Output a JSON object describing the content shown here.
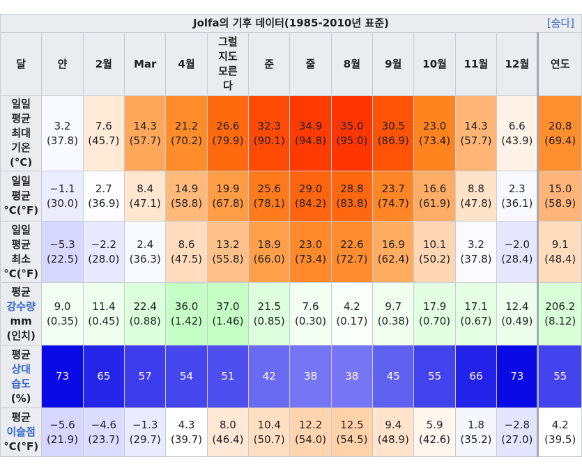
{
  "table": {
    "title": "Jolfa의 기후 데이터(1985-2010년 표준)",
    "hide_label": "[숨다]",
    "header_label": "달",
    "months": [
      "얀",
      "2월",
      "Mar",
      "4월",
      "그럴\n지도\n모른\n다",
      "준",
      "줄",
      "8월",
      "9월",
      "10월",
      "11월",
      "12월"
    ],
    "year_label": "연도",
    "rows": [
      {
        "label_lines": [
          {
            "text": "일일",
            "link": false
          },
          {
            "text": "평균",
            "link": false
          },
          {
            "text": "최대",
            "link": false
          },
          {
            "text": "기온",
            "link": false
          },
          {
            "text": "(°C)",
            "link": false
          }
        ],
        "height": 108,
        "cells": [
          {
            "v": "3.2",
            "s": "(37.8)",
            "bg": "#f8f9ff"
          },
          {
            "v": "7.6",
            "s": "(45.7)",
            "bg": "#ffead8"
          },
          {
            "v": "14.3",
            "s": "(57.7)",
            "bg": "#ffa75b"
          },
          {
            "v": "21.2",
            "s": "(70.2)",
            "bg": "#ff8c2a"
          },
          {
            "v": "26.6",
            "s": "(79.9)",
            "bg": "#ff6a0f"
          },
          {
            "v": "32.3",
            "s": "(90.1)",
            "bg": "#ff4a05"
          },
          {
            "v": "34.9",
            "s": "(94.8)",
            "bg": "#ff3a03"
          },
          {
            "v": "35.0",
            "s": "(95.0)",
            "bg": "#ff3603"
          },
          {
            "v": "30.5",
            "s": "(86.9)",
            "bg": "#ff5308"
          },
          {
            "v": "23.0",
            "s": "(73.4)",
            "bg": "#ff8420"
          },
          {
            "v": "14.3",
            "s": "(57.7)",
            "bg": "#ffb575"
          },
          {
            "v": "6.6",
            "s": "(43.9)",
            "bg": "#fff2e6"
          }
        ],
        "year": {
          "v": "20.8",
          "s": "(69.4)",
          "bg": "#ff8e2e"
        }
      },
      {
        "label_lines": [
          {
            "text": "일일",
            "link": false
          },
          {
            "text": "평균",
            "link": false
          },
          {
            "text": "°C(°F)",
            "link": false
          }
        ],
        "height": 72,
        "cells": [
          {
            "v": "−1.1",
            "s": "(30.0)",
            "bg": "#ececff"
          },
          {
            "v": "2.7",
            "s": "(36.9)",
            "bg": "#fdfdff"
          },
          {
            "v": "8.4",
            "s": "(47.1)",
            "bg": "#ffe6cf"
          },
          {
            "v": "14.9",
            "s": "(58.8)",
            "bg": "#ffb97b"
          },
          {
            "v": "19.9",
            "s": "(67.8)",
            "bg": "#ff9c46"
          },
          {
            "v": "25.6",
            "s": "(78.1)",
            "bg": "#ff7a1c"
          },
          {
            "v": "29.0",
            "s": "(84.2)",
            "bg": "#ff6510"
          },
          {
            "v": "28.8",
            "s": "(83.8)",
            "bg": "#ff6711"
          },
          {
            "v": "23.7",
            "s": "(74.7)",
            "bg": "#ff8526"
          },
          {
            "v": "16.6",
            "s": "(61.9)",
            "bg": "#ffad66"
          },
          {
            "v": "8.8",
            "s": "(47.8)",
            "bg": "#ffe3c9"
          },
          {
            "v": "2.3",
            "s": "(36.1)",
            "bg": "#f8f9ff"
          }
        ],
        "year": {
          "v": "15.0",
          "s": "(58.9)",
          "bg": "#ffb47a"
        }
      },
      {
        "label_lines": [
          {
            "text": "일일",
            "link": false
          },
          {
            "text": "평균",
            "link": false
          },
          {
            "text": "최소",
            "link": false
          },
          {
            "text": "°C(°F)",
            "link": false
          }
        ],
        "height": 88,
        "cells": [
          {
            "v": "−5.3",
            "s": "(22.5)",
            "bg": "#d8d8ff"
          },
          {
            "v": "−2.2",
            "s": "(28.0)",
            "bg": "#e8e8ff"
          },
          {
            "v": "2.4",
            "s": "(36.3)",
            "bg": "#f8f8ff"
          },
          {
            "v": "8.6",
            "s": "(47.5)",
            "bg": "#ffdcbe"
          },
          {
            "v": "13.2",
            "s": "(55.8)",
            "bg": "#ffc08a"
          },
          {
            "v": "18.9",
            "s": "(66.0)",
            "bg": "#ff9f4a"
          },
          {
            "v": "23.0",
            "s": "(73.4)",
            "bg": "#ff8a2b"
          },
          {
            "v": "22.6",
            "s": "(72.7)",
            "bg": "#ff8c2e"
          },
          {
            "v": "16.9",
            "s": "(62.4)",
            "bg": "#ffab60"
          },
          {
            "v": "10.1",
            "s": "(50.2)",
            "bg": "#ffd6b3"
          },
          {
            "v": "3.2",
            "s": "(37.8)",
            "bg": "#fafaff"
          },
          {
            "v": "−2.0",
            "s": "(28.4)",
            "bg": "#e6e6ff"
          }
        ],
        "year": {
          "v": "9.1",
          "s": "(48.4)",
          "bg": "#ffdcbd"
        }
      },
      {
        "label_lines": [
          {
            "text": "평균",
            "link": false
          },
          {
            "text": "강수량",
            "link": true
          },
          {
            "text": "mm",
            "link": false
          },
          {
            "text": "(인치)",
            "link": false
          }
        ],
        "height": 90,
        "cells": [
          {
            "v": "9.0",
            "s": "(0.35)",
            "bg": "#f2fff2"
          },
          {
            "v": "11.4",
            "s": "(0.45)",
            "bg": "#eeffee"
          },
          {
            "v": "22.4",
            "s": "(0.88)",
            "bg": "#dcffdc"
          },
          {
            "v": "36.0",
            "s": "(1.42)",
            "bg": "#c6ffc6"
          },
          {
            "v": "37.0",
            "s": "(1.46)",
            "bg": "#c5ffc5"
          },
          {
            "v": "21.5",
            "s": "(0.85)",
            "bg": "#ddffdd"
          },
          {
            "v": "7.6",
            "s": "(0.30)",
            "bg": "#f4fff4"
          },
          {
            "v": "4.2",
            "s": "(0.17)",
            "bg": "#f9fff9"
          },
          {
            "v": "9.7",
            "s": "(0.38)",
            "bg": "#f1fff1"
          },
          {
            "v": "17.9",
            "s": "(0.70)",
            "bg": "#e3ffe3"
          },
          {
            "v": "17.1",
            "s": "(0.67)",
            "bg": "#e4ffe4"
          },
          {
            "v": "12.4",
            "s": "(0.49)",
            "bg": "#ecffec"
          }
        ],
        "year": {
          "v": "206.2",
          "s": "(8.12)",
          "bg": "#d8ffd8"
        }
      },
      {
        "label_lines": [
          {
            "text": "평균",
            "link": false
          },
          {
            "text": "상대",
            "link": true
          },
          {
            "text": "습도",
            "link": true
          },
          {
            "text": "(%)",
            "link": false
          }
        ],
        "height": 90,
        "white_text": true,
        "cells": [
          {
            "v": "73",
            "s": "",
            "bg": "#0a0ae6"
          },
          {
            "v": "65",
            "s": "",
            "bg": "#2525ea"
          },
          {
            "v": "57",
            "s": "",
            "bg": "#3d3ded"
          },
          {
            "v": "54",
            "s": "",
            "bg": "#4646ef"
          },
          {
            "v": "51",
            "s": "",
            "bg": "#4f4ff0"
          },
          {
            "v": "42",
            "s": "",
            "bg": "#6a6af2"
          },
          {
            "v": "38",
            "s": "",
            "bg": "#7676f4"
          },
          {
            "v": "38",
            "s": "",
            "bg": "#7676f4"
          },
          {
            "v": "45",
            "s": "",
            "bg": "#6161f1"
          },
          {
            "v": "55",
            "s": "",
            "bg": "#4343ee"
          },
          {
            "v": "66",
            "s": "",
            "bg": "#2222e9"
          },
          {
            "v": "73",
            "s": "",
            "bg": "#0a0ae6"
          }
        ],
        "year": {
          "v": "55",
          "s": "",
          "bg": "#4343ee"
        }
      },
      {
        "label_lines": [
          {
            "text": "평균",
            "link": false
          },
          {
            "text": "이슬점",
            "link": true
          },
          {
            "text": "°C(°F)",
            "link": false
          }
        ],
        "height": 70,
        "cells": [
          {
            "v": "−5.6",
            "s": "(21.9)",
            "bg": "#d6d6ff"
          },
          {
            "v": "−4.6",
            "s": "(23.7)",
            "bg": "#dcdcff"
          },
          {
            "v": "−1.3",
            "s": "(29.7)",
            "bg": "#ebebff"
          },
          {
            "v": "4.3",
            "s": "(39.7)",
            "bg": "#ffffff"
          },
          {
            "v": "8.0",
            "s": "(46.4)",
            "bg": "#ffe9d6"
          },
          {
            "v": "10.4",
            "s": "(50.7)",
            "bg": "#ffdfc2"
          },
          {
            "v": "12.2",
            "s": "(54.0)",
            "bg": "#ffd4ae"
          },
          {
            "v": "12.5",
            "s": "(54.5)",
            "bg": "#ffd2aa"
          },
          {
            "v": "9.4",
            "s": "(48.9)",
            "bg": "#ffe4cb"
          },
          {
            "v": "5.9",
            "s": "(42.6)",
            "bg": "#fff6ee"
          },
          {
            "v": "1.8",
            "s": "(35.2)",
            "bg": "#f6f6ff"
          },
          {
            "v": "−2.8",
            "s": "(27.0)",
            "bg": "#e4e4ff"
          }
        ],
        "year": {
          "v": "4.2",
          "s": "(39.5)",
          "bg": "#ffffff"
        }
      }
    ]
  }
}
